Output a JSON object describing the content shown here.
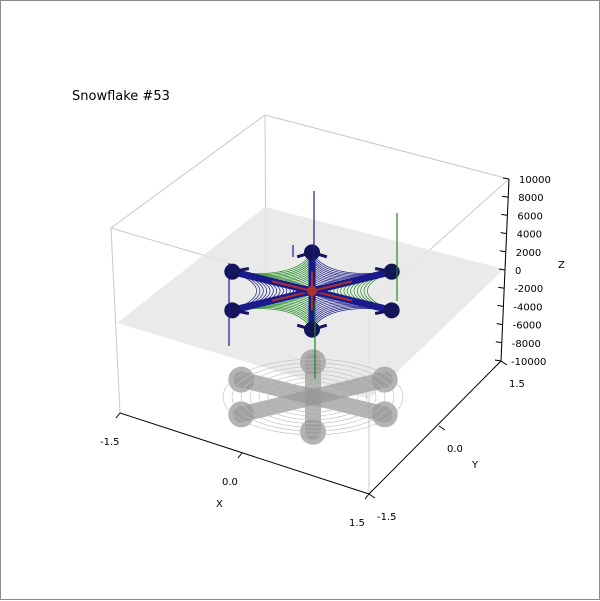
{
  "chart_data": {
    "type": "3d-surface",
    "title": "Snowflake #53",
    "xlabel": "X",
    "ylabel": "Y",
    "zlabel": "Z",
    "xlim": [
      -1.5,
      1.5
    ],
    "ylim": [
      -1.5,
      1.5
    ],
    "zlim": [
      -10000,
      10000
    ],
    "x_ticks": [
      "-1.5",
      "0.0",
      "1.5"
    ],
    "y_ticks": [
      "1.5",
      "0.0",
      "-1.5"
    ],
    "z_ticks": [
      "10000",
      "8000",
      "6000",
      "4000",
      "2000",
      "0",
      "-2000",
      "-4000",
      "-6000",
      "-8000",
      "-10000"
    ],
    "grid": true,
    "arms": 6,
    "series_colors": {
      "contours_primary": "#1a1a8c",
      "contours_secondary": "#1a8c1a",
      "core": "#b03030",
      "floor_shadow": "#9a9a9a",
      "z0_plane": "#e6e6e6"
    }
  }
}
